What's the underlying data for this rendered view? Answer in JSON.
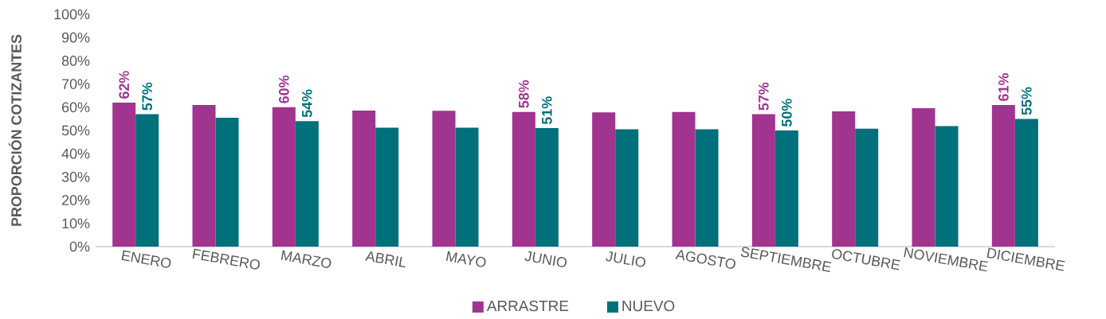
{
  "chart_data": {
    "type": "bar",
    "ylabel": "PROPORCIÓN COTIZANTES",
    "categories": [
      "ENERO",
      "FEBRERO",
      "MARZO",
      "ABRIL",
      "MAYO",
      "JUNIO",
      "JULIO",
      "AGOSTO",
      "SEPTIEMBRE",
      "OCTUBRE",
      "NOVIEMBRE",
      "DICIEMBRE"
    ],
    "series": [
      {
        "name": "ARRASTRE",
        "color": "#a0348f",
        "values": [
          62,
          61,
          60,
          58.6,
          58.5,
          58,
          57.8,
          58,
          57,
          58.2,
          59.6,
          61
        ],
        "value_labels": [
          "62%",
          null,
          "60%",
          null,
          null,
          "58%",
          null,
          null,
          "57%",
          null,
          null,
          "61%"
        ]
      },
      {
        "name": "NUEVO",
        "color": "#00707a",
        "values": [
          57,
          55.5,
          54,
          51.2,
          51.2,
          51,
          50.5,
          50.5,
          50,
          50.8,
          51.9,
          55
        ],
        "value_labels": [
          "57%",
          null,
          "54%",
          null,
          null,
          "51%",
          null,
          null,
          "50%",
          null,
          null,
          "55%"
        ]
      }
    ],
    "ylim": [
      0,
      100
    ],
    "yticks": [
      {
        "value": 0,
        "label": "0%"
      },
      {
        "value": 10,
        "label": "10%"
      },
      {
        "value": 20,
        "label": "20%"
      },
      {
        "value": 30,
        "label": "30%"
      },
      {
        "value": 40,
        "label": "40%"
      },
      {
        "value": 50,
        "label": "50%"
      },
      {
        "value": 60,
        "label": "60%"
      },
      {
        "value": 70,
        "label": "70%"
      },
      {
        "value": 80,
        "label": "80%"
      },
      {
        "value": 90,
        "label": "90%"
      },
      {
        "value": 100,
        "label": "100%"
      }
    ],
    "grid": false,
    "legend": "bottom"
  }
}
